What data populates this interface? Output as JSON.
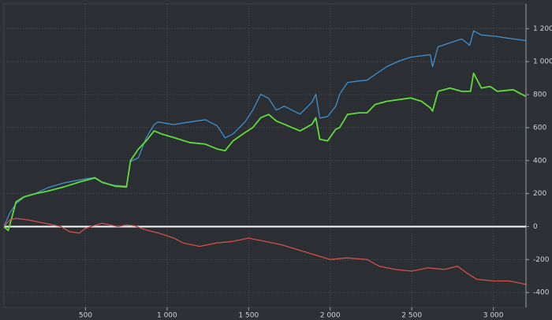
{
  "chart_data": {
    "type": "line",
    "xlim": [
      0,
      3200
    ],
    "ylim": [
      -490,
      1350
    ],
    "xticks": [
      500,
      {
        "value": 1000,
        "label": "1 000"
      },
      {
        "value": 1500,
        "label": "1 500"
      },
      {
        "value": 2000,
        "label": "2 000"
      },
      {
        "value": 2500,
        "label": "2 500"
      },
      {
        "value": 3000,
        "label": "3 000"
      }
    ],
    "yticks": [
      -400,
      -200,
      0,
      200,
      400,
      600,
      800,
      {
        "value": 1000,
        "label": "1 000"
      },
      {
        "value": 1200,
        "label": "1 200"
      }
    ],
    "grid": true,
    "series": [
      {
        "color": "#3f8fcf",
        "x": [
          0,
          36,
          74,
          123,
          195,
          268,
          365,
          461,
          558,
          606,
          679,
          751,
          776,
          824,
          872,
          921,
          945,
          1041,
          1138,
          1235,
          1308,
          1356,
          1404,
          1477,
          1525,
          1574,
          1622,
          1670,
          1719,
          1767,
          1815,
          1888,
          1912,
          1936,
          1984,
          2034,
          2058,
          2106,
          2178,
          2226,
          2275,
          2347,
          2420,
          2492,
          2613,
          2627,
          2661,
          2734,
          2806,
          2855,
          2879,
          2927,
          3024,
          3121,
          3198
        ],
        "values": [
          0,
          82,
          139,
          178,
          202,
          235,
          264,
          283,
          298,
          264,
          250,
          245,
          394,
          418,
          538,
          619,
          634,
          619,
          634,
          648,
          610,
          538,
          562,
          634,
          706,
          802,
          778,
          706,
          730,
          706,
          682,
          754,
          802,
          658,
          667,
          730,
          802,
          874,
          883,
          888,
          922,
          970,
          1003,
          1027,
          1042,
          970,
          1090,
          1114,
          1138,
          1099,
          1186,
          1162,
          1152,
          1138,
          1128
        ]
      },
      {
        "color": "#5fdc3a",
        "x": [
          0,
          26,
          50,
          74,
          123,
          195,
          268,
          365,
          461,
          558,
          600,
          680,
          751,
          776,
          824,
          872,
          921,
          970,
          1041,
          1138,
          1235,
          1308,
          1356,
          1404,
          1477,
          1525,
          1574,
          1622,
          1670,
          1719,
          1767,
          1815,
          1888,
          1912,
          1936,
          1984,
          2034,
          2058,
          2106,
          2178,
          2226,
          2275,
          2347,
          2420,
          2492,
          2560,
          2613,
          2627,
          2661,
          2734,
          2806,
          2860,
          2879,
          2927,
          2980,
          3024,
          3121,
          3198
        ],
        "values": [
          0,
          -24,
          60,
          150,
          180,
          200,
          215,
          240,
          270,
          295,
          270,
          245,
          240,
          400,
          470,
          520,
          580,
          560,
          540,
          510,
          500,
          470,
          460,
          520,
          570,
          600,
          660,
          680,
          640,
          620,
          600,
          580,
          620,
          660,
          530,
          520,
          590,
          600,
          680,
          690,
          690,
          740,
          760,
          770,
          780,
          760,
          720,
          700,
          820,
          840,
          820,
          820,
          930,
          840,
          850,
          820,
          830,
          790
        ]
      },
      {
        "color": "#d0504c",
        "x": [
          0,
          36,
          74,
          150,
          250,
          350,
          400,
          461,
          500,
          600,
          700,
          750,
          800,
          870,
          950,
          1041,
          1100,
          1200,
          1300,
          1400,
          1500,
          1600,
          1700,
          1800,
          1900,
          2000,
          2100,
          2226,
          2300,
          2400,
          2500,
          2600,
          2700,
          2780,
          2850,
          2900,
          3000,
          3100,
          3198
        ],
        "values": [
          0,
          40,
          50,
          40,
          20,
          0,
          -30,
          -40,
          -10,
          20,
          0,
          10,
          5,
          -20,
          -40,
          -70,
          -100,
          -120,
          -100,
          -90,
          -70,
          -90,
          -110,
          -140,
          -170,
          -200,
          -190,
          -200,
          -240,
          -260,
          -270,
          -250,
          -260,
          -240,
          -290,
          -320,
          -330,
          -330,
          -350
        ]
      }
    ]
  }
}
